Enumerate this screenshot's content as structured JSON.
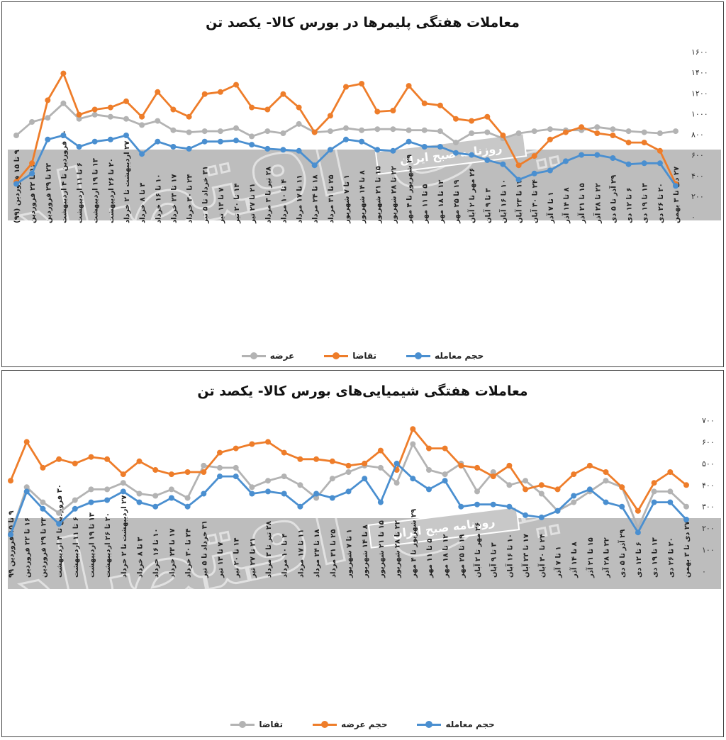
{
  "colors": {
    "volume": "#4a8fd0",
    "orange": "#ee7d2a",
    "gray": "#b3b3b3",
    "band": "#bdbdbd"
  },
  "watermark": {
    "brand": "دنیای اقتصاد",
    "badge": "روزنامه صبح ایران"
  },
  "charts": [
    {
      "title": "معاملات هفتگی پلیمرها در بورس کالا- یکصد تن",
      "legend": [
        {
          "name": "حجم معامله",
          "color": "#4a8fd0"
        },
        {
          "name": "تقاضا",
          "color": "#ee7d2a"
        },
        {
          "name": "عرضه",
          "color": "#b3b3b3"
        }
      ],
      "y_ticks": [
        "۰",
        "۲۰۰",
        "۴۰۰",
        "۶۰۰",
        "۸۰۰",
        "۱۰۰۰",
        "۱۲۰۰",
        "۱۴۰۰",
        "۱۶۰۰"
      ]
    },
    {
      "title": "معاملات هفتگی شیمیایی‌های بورس کالا- یکصد تن",
      "legend": [
        {
          "name": "حجم معامله",
          "color": "#4a8fd0"
        },
        {
          "name": "حجم عرضه",
          "color": "#ee7d2a"
        },
        {
          "name": "تقاضا",
          "color": "#b3b3b3"
        }
      ],
      "y_ticks": [
        "۰",
        "۱۰۰",
        "۲۰۰",
        "۳۰۰",
        "۴۰۰",
        "۵۰۰",
        "۶۰۰",
        "۷۰۰"
      ]
    }
  ],
  "chart_data": [
    {
      "type": "line",
      "title": "معاملات هفتگی پلیمرها در بورس کالا- یکصد تن",
      "ylim": [
        0,
        1600
      ],
      "categories": [
        "۹ تا ۱۵ فروردین (۹۹)",
        "۱۶ تا ۲۲ فروردین",
        "۲۳ تا ۲۹ فروردین",
        "۳۰ فروردین تا ۴ اردیبهشت",
        "۶ تا ۱۱ اردیبهشت",
        "۱۳ تا ۱۹ اردیبهشت",
        "۲۰ تا ۲۶ اردیبهشت",
        "۲۷ اردیبهشت تا ۲ خرداد",
        "۳ تا ۸ خرداد",
        "۱۰ تا ۱۶ خرداد",
        "۱۷ تا ۲۳ خرداد",
        "۲۴ تا ۳۰ خرداد",
        "۳۱ خرداد تا ۵ تیر",
        "۷ تا ۱۳ تیر",
        "۱۴ تا ۲۰ تیر",
        "۲۱ تا ۲۷ تیر",
        "۲۸ تیر تا ۳ مرداد",
        "۴ تا ۱۰ مرداد",
        "۱۱ تا ۱۷ مرداد",
        "۱۸ تا ۲۴ مرداد",
        "۲۵ تا ۳۱ مرداد",
        "۱ تا ۷ شهریور",
        "۸ تا ۱۴ شهریور",
        "۱۵ تا ۲۱ شهریور",
        "۲۲ تا ۲۸ شهریور",
        "۲۹ شهریور تا ۴ مهر",
        "۵ تا ۱۱ مهر",
        "۱۲ تا ۱۸ مهر",
        "۱۹ تا ۲۵ مهر",
        "۲۶ مهر تا ۲ آبان",
        "۳ تا ۹ آبان",
        "۱۰ تا ۱۶ آبان",
        "۱۷ تا ۲۳ آبان",
        "۲۴ تا ۳۰ آبان",
        "۱ تا ۷ آذر",
        "۸ تا ۱۴ آذر",
        "۱۵ تا ۲۱ آذر",
        "۲۲ تا ۲۸ آذر",
        "۲۹ آذر تا ۵ دی",
        "۶ تا ۱۲ دی",
        "۱۳ تا ۱۹ دی",
        "۲۰ تا ۲۶ دی",
        "۲۷ دی تا ۳ بهمن"
      ],
      "series": [
        {
          "name": "حجم معامله",
          "values": [
            320,
            420,
            750,
            790,
            680,
            730,
            750,
            790,
            610,
            730,
            680,
            660,
            730,
            730,
            740,
            700,
            660,
            650,
            640,
            500,
            650,
            750,
            730,
            650,
            640,
            730,
            680,
            680,
            620,
            600,
            550,
            510,
            360,
            420,
            450,
            540,
            600,
            600,
            570,
            510,
            520,
            520,
            300
          ]
        },
        {
          "name": "تقاضا",
          "values": [
            340,
            520,
            1130,
            1390,
            990,
            1040,
            1060,
            1120,
            970,
            1210,
            1040,
            970,
            1190,
            1210,
            1280,
            1060,
            1040,
            1190,
            1060,
            820,
            980,
            1260,
            1290,
            1020,
            1030,
            1270,
            1100,
            1080,
            950,
            930,
            970,
            790,
            500,
            590,
            750,
            820,
            870,
            810,
            790,
            720,
            720,
            640,
            320
          ]
        },
        {
          "name": "عرضه",
          "values": [
            790,
            920,
            960,
            1100,
            950,
            990,
            970,
            950,
            890,
            930,
            840,
            820,
            830,
            830,
            860,
            780,
            830,
            810,
            900,
            820,
            830,
            860,
            840,
            850,
            850,
            840,
            840,
            830,
            720,
            810,
            820,
            760,
            810,
            830,
            850,
            840,
            840,
            870,
            850,
            830,
            820,
            810,
            830
          ]
        }
      ]
    },
    {
      "type": "line",
      "title": "معاملات هفتگی شیمیایی‌های بورس کالا- یکصد تن",
      "ylim": [
        0,
        700
      ],
      "categories": [
        "۹ تا ۱۵ فروردین ۹۹",
        "۱۶ تا ۲۲ فروردین",
        "۲۳ تا ۲۹ فروردین",
        "۳۰ فروردین تا ۴ اردیبهشت",
        "۶ تا ۱۱ اردیبهشت",
        "۱۳ تا ۱۹ اردیبهشت",
        "۲۰ تا ۲۶ اردیبهشت",
        "۲۷ اردیبهشت تا ۲ خرداد",
        "۳ تا ۸ خرداد",
        "۱۰ تا ۱۶ خرداد",
        "۱۷ تا ۲۳ خرداد",
        "۲۴ تا ۳۰ خرداد",
        "۳۱ خرداد تا ۵ تیر",
        "۷ تا ۱۳ تیر",
        "۱۴ تا ۲۰ تیر",
        "۲۱ تا ۲۷ تیر",
        "۲۸ تیر تا ۳ مرداد",
        "۴ تا ۱۰ مرداد",
        "۱۱ تا ۱۷ مرداد",
        "۱۸ تا ۲۴ مرداد",
        "۲۵ تا ۳۱ مرداد",
        "۱ تا ۷ شهریور",
        "۸ تا ۱۴ شهریور",
        "۱۵ تا ۲۱ شهریور",
        "۲۲ تا ۲۸ شهریور",
        "۲۹ شهریور تا ۴ مهر",
        "۵ تا ۱۱ مهر",
        "۱۲ تا ۱۸ مهر",
        "۱۹ تا ۲۵ مهر",
        "۲۶ مهر تا ۲ آبان",
        "۳ تا ۹ آبان",
        "۱۰ تا ۱۶ آبان",
        "۱۷ تا ۲۳ آبان",
        "۲۴ تا ۳۰ آبان",
        "۱ تا ۷ آذر",
        "۸ تا ۱۴ آذر",
        "۱۵ تا ۲۱ آذر",
        "۲۲ تا ۲۸ آذر",
        "۲۹ آذر تا ۵ دی",
        "۶ تا ۱۲ دی",
        "۱۳ تا ۱۹ دی",
        "۲۰ تا ۲۶ دی",
        "۲۷ دی تا ۳ بهمن"
      ],
      "series": [
        {
          "name": "حجم معامله",
          "values": [
            170,
            370,
            290,
            220,
            290,
            320,
            330,
            370,
            320,
            300,
            340,
            300,
            360,
            440,
            440,
            360,
            370,
            360,
            300,
            360,
            340,
            370,
            430,
            320,
            500,
            430,
            380,
            420,
            300,
            310,
            310,
            300,
            260,
            250,
            280,
            350,
            380,
            320,
            300,
            180,
            320,
            320,
            240
          ]
        },
        {
          "name": "حجم عرضه",
          "values": [
            420,
            600,
            480,
            520,
            500,
            530,
            520,
            450,
            510,
            470,
            450,
            460,
            460,
            550,
            570,
            590,
            600,
            550,
            520,
            520,
            510,
            490,
            500,
            560,
            470,
            660,
            570,
            570,
            490,
            480,
            440,
            490,
            380,
            400,
            380,
            450,
            490,
            460,
            390,
            280,
            410,
            460,
            400
          ]
        },
        {
          "name": "تقاضا",
          "values": [
            170,
            390,
            320,
            270,
            330,
            380,
            380,
            410,
            360,
            350,
            380,
            340,
            490,
            480,
            480,
            390,
            420,
            440,
            400,
            340,
            430,
            460,
            490,
            480,
            410,
            590,
            470,
            450,
            500,
            370,
            460,
            400,
            420,
            360,
            280,
            320,
            370,
            420,
            390,
            200,
            370,
            370,
            300
          ]
        }
      ]
    }
  ]
}
